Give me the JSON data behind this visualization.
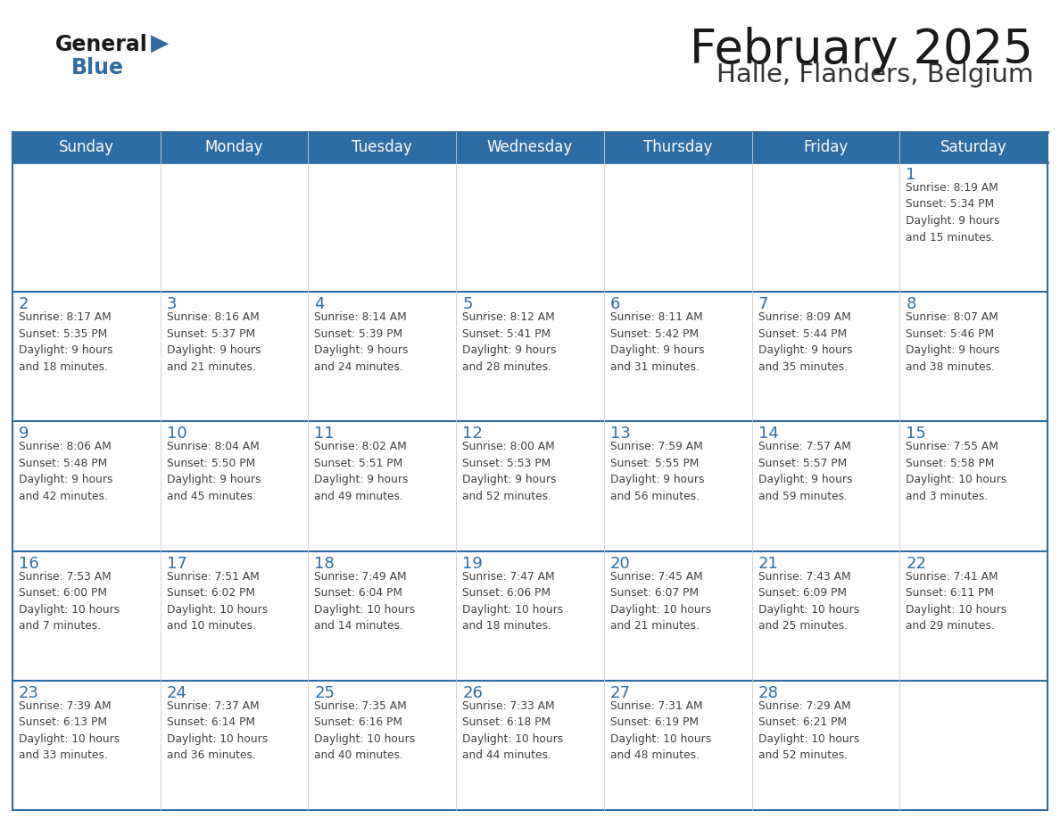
{
  "title": "February 2025",
  "subtitle": "Halle, Flanders, Belgium",
  "header_bg": "#2E6DA4",
  "header_text": "#FFFFFF",
  "cell_bg": "#FFFFFF",
  "day_num_color": "#2E6DA4",
  "text_color": "#404040",
  "line_color": "#2E6DA4",
  "days_of_week": [
    "Sunday",
    "Monday",
    "Tuesday",
    "Wednesday",
    "Thursday",
    "Friday",
    "Saturday"
  ],
  "weeks": [
    [
      {
        "day": null,
        "info": null
      },
      {
        "day": null,
        "info": null
      },
      {
        "day": null,
        "info": null
      },
      {
        "day": null,
        "info": null
      },
      {
        "day": null,
        "info": null
      },
      {
        "day": null,
        "info": null
      },
      {
        "day": 1,
        "info": "Sunrise: 8:19 AM\nSunset: 5:34 PM\nDaylight: 9 hours\nand 15 minutes."
      }
    ],
    [
      {
        "day": 2,
        "info": "Sunrise: 8:17 AM\nSunset: 5:35 PM\nDaylight: 9 hours\nand 18 minutes."
      },
      {
        "day": 3,
        "info": "Sunrise: 8:16 AM\nSunset: 5:37 PM\nDaylight: 9 hours\nand 21 minutes."
      },
      {
        "day": 4,
        "info": "Sunrise: 8:14 AM\nSunset: 5:39 PM\nDaylight: 9 hours\nand 24 minutes."
      },
      {
        "day": 5,
        "info": "Sunrise: 8:12 AM\nSunset: 5:41 PM\nDaylight: 9 hours\nand 28 minutes."
      },
      {
        "day": 6,
        "info": "Sunrise: 8:11 AM\nSunset: 5:42 PM\nDaylight: 9 hours\nand 31 minutes."
      },
      {
        "day": 7,
        "info": "Sunrise: 8:09 AM\nSunset: 5:44 PM\nDaylight: 9 hours\nand 35 minutes."
      },
      {
        "day": 8,
        "info": "Sunrise: 8:07 AM\nSunset: 5:46 PM\nDaylight: 9 hours\nand 38 minutes."
      }
    ],
    [
      {
        "day": 9,
        "info": "Sunrise: 8:06 AM\nSunset: 5:48 PM\nDaylight: 9 hours\nand 42 minutes."
      },
      {
        "day": 10,
        "info": "Sunrise: 8:04 AM\nSunset: 5:50 PM\nDaylight: 9 hours\nand 45 minutes."
      },
      {
        "day": 11,
        "info": "Sunrise: 8:02 AM\nSunset: 5:51 PM\nDaylight: 9 hours\nand 49 minutes."
      },
      {
        "day": 12,
        "info": "Sunrise: 8:00 AM\nSunset: 5:53 PM\nDaylight: 9 hours\nand 52 minutes."
      },
      {
        "day": 13,
        "info": "Sunrise: 7:59 AM\nSunset: 5:55 PM\nDaylight: 9 hours\nand 56 minutes."
      },
      {
        "day": 14,
        "info": "Sunrise: 7:57 AM\nSunset: 5:57 PM\nDaylight: 9 hours\nand 59 minutes."
      },
      {
        "day": 15,
        "info": "Sunrise: 7:55 AM\nSunset: 5:58 PM\nDaylight: 10 hours\nand 3 minutes."
      }
    ],
    [
      {
        "day": 16,
        "info": "Sunrise: 7:53 AM\nSunset: 6:00 PM\nDaylight: 10 hours\nand 7 minutes."
      },
      {
        "day": 17,
        "info": "Sunrise: 7:51 AM\nSunset: 6:02 PM\nDaylight: 10 hours\nand 10 minutes."
      },
      {
        "day": 18,
        "info": "Sunrise: 7:49 AM\nSunset: 6:04 PM\nDaylight: 10 hours\nand 14 minutes."
      },
      {
        "day": 19,
        "info": "Sunrise: 7:47 AM\nSunset: 6:06 PM\nDaylight: 10 hours\nand 18 minutes."
      },
      {
        "day": 20,
        "info": "Sunrise: 7:45 AM\nSunset: 6:07 PM\nDaylight: 10 hours\nand 21 minutes."
      },
      {
        "day": 21,
        "info": "Sunrise: 7:43 AM\nSunset: 6:09 PM\nDaylight: 10 hours\nand 25 minutes."
      },
      {
        "day": 22,
        "info": "Sunrise: 7:41 AM\nSunset: 6:11 PM\nDaylight: 10 hours\nand 29 minutes."
      }
    ],
    [
      {
        "day": 23,
        "info": "Sunrise: 7:39 AM\nSunset: 6:13 PM\nDaylight: 10 hours\nand 33 minutes."
      },
      {
        "day": 24,
        "info": "Sunrise: 7:37 AM\nSunset: 6:14 PM\nDaylight: 10 hours\nand 36 minutes."
      },
      {
        "day": 25,
        "info": "Sunrise: 7:35 AM\nSunset: 6:16 PM\nDaylight: 10 hours\nand 40 minutes."
      },
      {
        "day": 26,
        "info": "Sunrise: 7:33 AM\nSunset: 6:18 PM\nDaylight: 10 hours\nand 44 minutes."
      },
      {
        "day": 27,
        "info": "Sunrise: 7:31 AM\nSunset: 6:19 PM\nDaylight: 10 hours\nand 48 minutes."
      },
      {
        "day": 28,
        "info": "Sunrise: 7:29 AM\nSunset: 6:21 PM\nDaylight: 10 hours\nand 52 minutes."
      },
      {
        "day": null,
        "info": null
      }
    ]
  ]
}
